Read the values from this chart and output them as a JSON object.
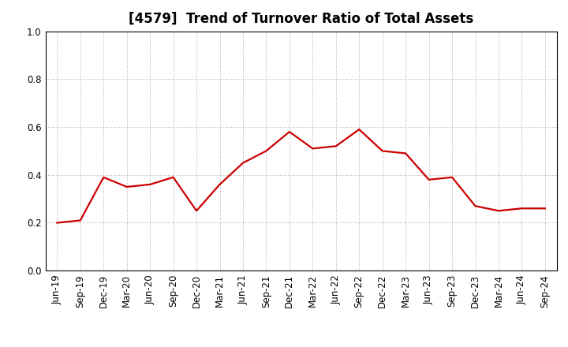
{
  "title": "[4579]  Trend of Turnover Ratio of Total Assets",
  "x_labels": [
    "Jun-19",
    "Sep-19",
    "Dec-19",
    "Mar-20",
    "Jun-20",
    "Sep-20",
    "Dec-20",
    "Mar-21",
    "Jun-21",
    "Sep-21",
    "Dec-21",
    "Mar-22",
    "Jun-22",
    "Sep-22",
    "Dec-22",
    "Mar-23",
    "Jun-23",
    "Sep-23",
    "Dec-23",
    "Mar-24",
    "Jun-24",
    "Sep-24"
  ],
  "y_values": [
    0.2,
    0.21,
    0.39,
    0.35,
    0.36,
    0.39,
    0.25,
    0.36,
    0.45,
    0.5,
    0.58,
    0.51,
    0.52,
    0.59,
    0.5,
    0.49,
    0.38,
    0.39,
    0.27,
    0.25,
    0.26,
    0.26
  ],
  "line_color": "#cc0000",
  "line_width": 1.6,
  "ylim": [
    0.0,
    1.0
  ],
  "yticks": [
    0.0,
    0.2,
    0.4,
    0.6,
    0.8,
    1.0
  ],
  "background_color": "#ffffff",
  "grid_color": "#aaaaaa",
  "title_fontsize": 12,
  "tick_fontsize": 8.5
}
